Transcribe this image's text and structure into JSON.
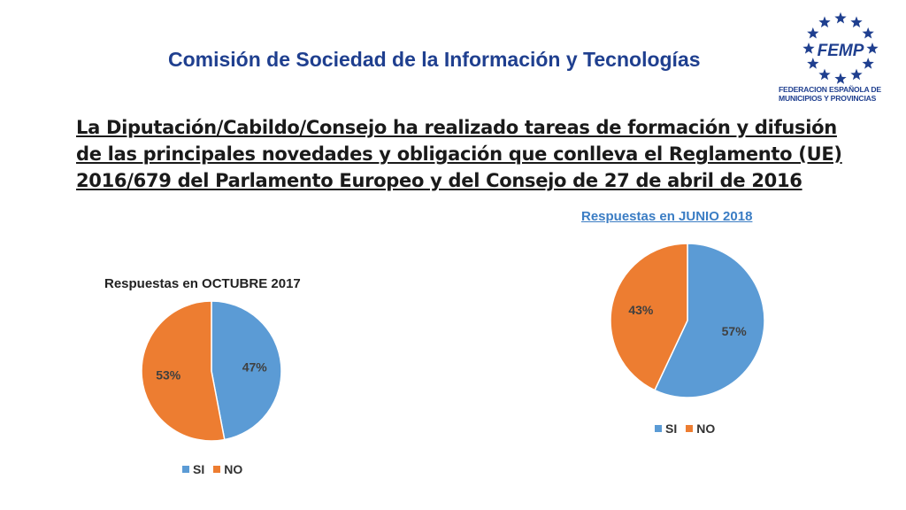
{
  "header": {
    "title": "Comisión de Sociedad de la Información y Tecnologías"
  },
  "logo": {
    "text": "FEMP",
    "line1": "FEDERACION ESPAÑOLA DE",
    "line2": "MUNICIPIOS Y PROVINCIAS"
  },
  "question": "La Diputación/Cabildo/Consejo ha realizado tareas de formación y difusión de las principales novedades y obligación que conlleva el Reglamento (UE) 2016/679 del Parlamento Europeo y del Consejo de 27 de abril de 2016",
  "chart_data": [
    {
      "type": "pie",
      "title": "Respuestas en OCTUBRE 2017",
      "categories": [
        "SI",
        "NO"
      ],
      "values": [
        47,
        53
      ],
      "labels": [
        "47%",
        "53%"
      ],
      "colors": [
        "#5b9bd5",
        "#ed7d31"
      ],
      "legend": "bottom"
    },
    {
      "type": "pie",
      "title": "Respuestas en JUNIO 2018",
      "categories": [
        "SI",
        "NO"
      ],
      "values": [
        57,
        43
      ],
      "labels": [
        "57%",
        "43%"
      ],
      "colors": [
        "#5b9bd5",
        "#ed7d31"
      ],
      "legend": "bottom"
    }
  ]
}
